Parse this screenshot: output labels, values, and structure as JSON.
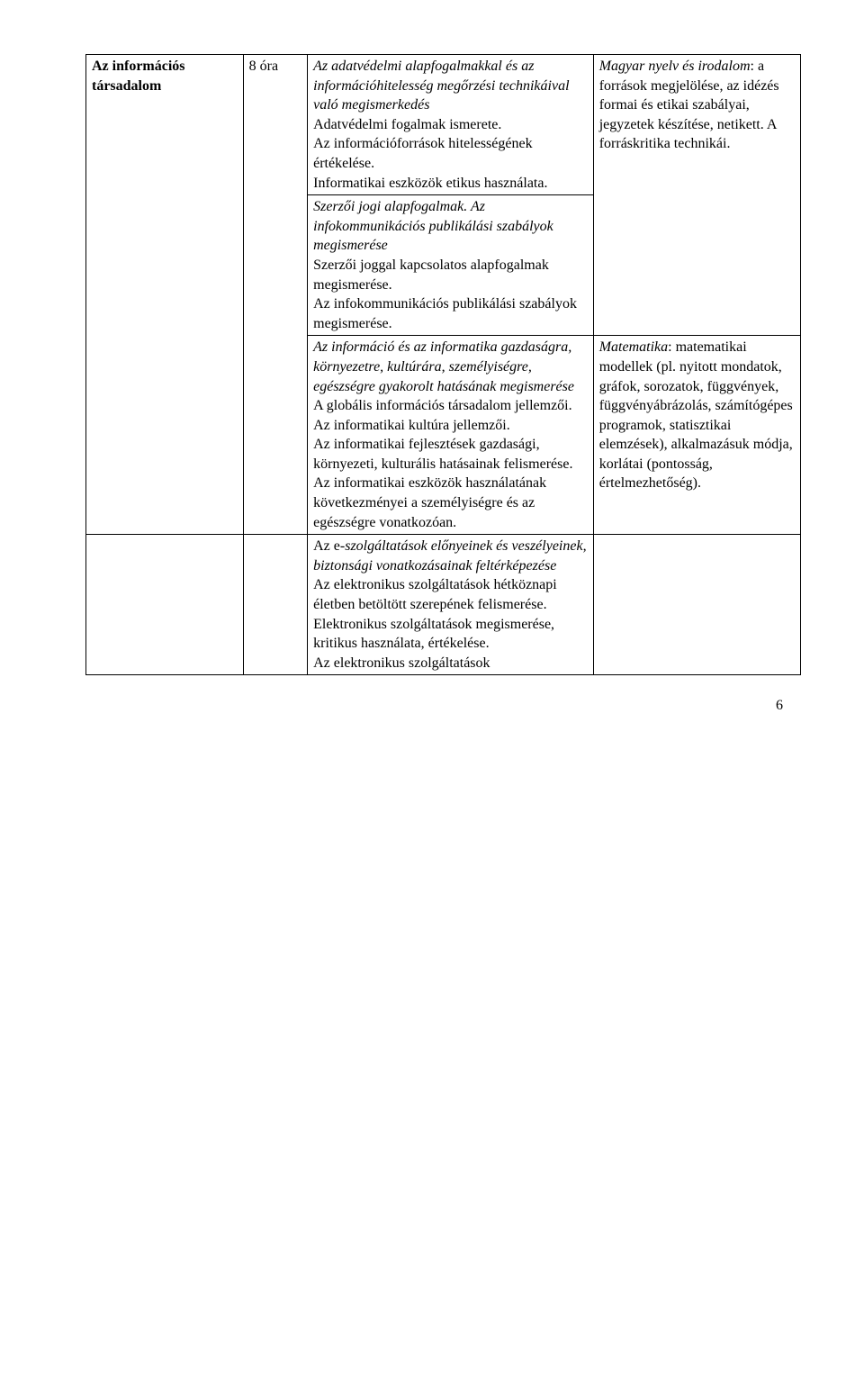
{
  "table": {
    "row1": {
      "col1_line1": "Az információs",
      "col1_line2": "társadalom",
      "col2": "8 óra",
      "col3_italic": "Az adatvédelmi alapfogalmakkal és az információhitelesség megőrzési technikáival való megismerkedés",
      "col3_plain": "Adatvédelmi fogalmak ismerete.\nAz információforrások hitelességének értékelése.\nInformatikai eszközök etikus használata."
    },
    "row2": {
      "col3_italic": "Szerzői jogi alapfogalmak. Az infokommunikációs publikálási szabályok megismerése",
      "col3_plain": "Szerzői joggal kapcsolatos alapfogalmak megismerése.\nAz infokommunikációs publikálási szabályok megismerése.",
      "col4_italic1": "Magyar nyelv és irodalom",
      "col4_plain": ": a források megjelölése, az idézés formai és etikai szabályai, jegyzetek készítése, netikett. A forráskritika technikái."
    },
    "row3": {
      "col3_italic": "Az információ és az informatika gazdaságra, környezetre, kultúrára, személyiségre, egészségre gyakorolt hatásának megismerése",
      "col3_plain": "A globális információs társadalom jellemzői.\nAz informatikai kultúra jellemzői.\nAz informatikai fejlesztések gazdasági, környezeti, kulturális hatásainak felismerése.\nAz informatikai eszközök használatának következményei a személyiségre és az egészségre vonatkozóan.",
      "col4_italic1": "Matematika",
      "col4_plain": ": matematikai modellek (pl. nyitott mondatok, gráfok, sorozatok, függvények, függvényábrázolás, számítógépes programok, statisztikai elemzések), alkalmazásuk módja, korlátai (pontosság, értelmezhetőség)."
    },
    "row4": {
      "col3_italic_pre": "Az e",
      "col3_italic_post": "-szolgáltatások előnyeinek és veszélyeinek, biztonsági vonatkozásainak feltérképezése",
      "col3_plain": "Az elektronikus szolgáltatások hétköznapi életben betöltött szerepének felismerése.\nElektronikus szolgáltatások megismerése, kritikus használata, értékelése.\nAz elektronikus szolgáltatások"
    }
  },
  "page_number": "6"
}
